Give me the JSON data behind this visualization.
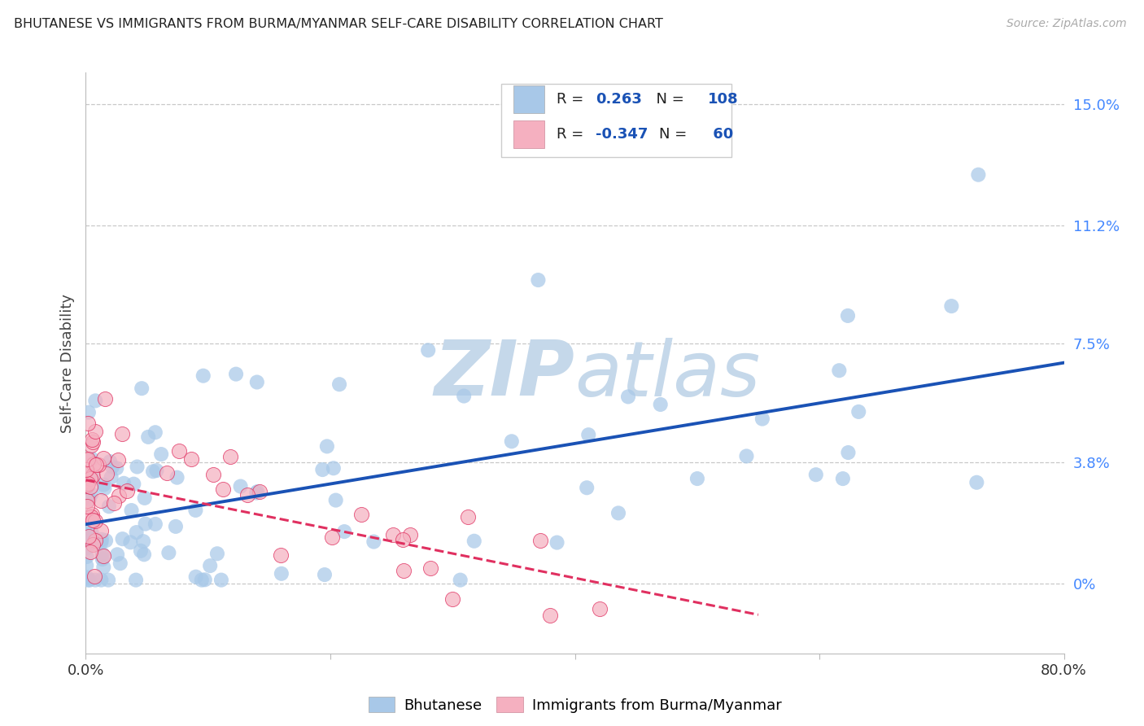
{
  "title": "BHUTANESE VS IMMIGRANTS FROM BURMA/MYANMAR SELF-CARE DISABILITY CORRELATION CHART",
  "source": "Source: ZipAtlas.com",
  "ylabel": "Self-Care Disability",
  "xlim": [
    0.0,
    0.8
  ],
  "ylim": [
    -0.022,
    0.16
  ],
  "xtick_positions": [
    0.0,
    0.2,
    0.4,
    0.6,
    0.8
  ],
  "xtick_labels": [
    "0.0%",
    "",
    "",
    "",
    "80.0%"
  ],
  "ytick_values": [
    0.0,
    0.038,
    0.075,
    0.112,
    0.15
  ],
  "ytick_labels": [
    "0%",
    "3.8%",
    "7.5%",
    "11.2%",
    "15.0%"
  ],
  "r_bhutanese": "0.263",
  "n_bhutanese": "108",
  "r_burma": "-0.347",
  "n_burma": "60",
  "blue_scatter_color": "#a8c8e8",
  "blue_line_color": "#1a52b5",
  "pink_scatter_color": "#f5b0c0",
  "pink_line_color": "#e03060",
  "legend_text_color": "#1a52b5",
  "legend_n_color": "#1a52b5",
  "watermark_zip_color": "#c5d8ea",
  "watermark_atlas_color": "#c5d8ea",
  "background_color": "#ffffff",
  "grid_color": "#c8c8c8",
  "title_color": "#222222",
  "ylabel_color": "#444444",
  "right_axis_color": "#4488ff",
  "bottom_axis_color": "#333333",
  "source_color": "#aaaaaa",
  "spine_color": "#bbbbbb"
}
